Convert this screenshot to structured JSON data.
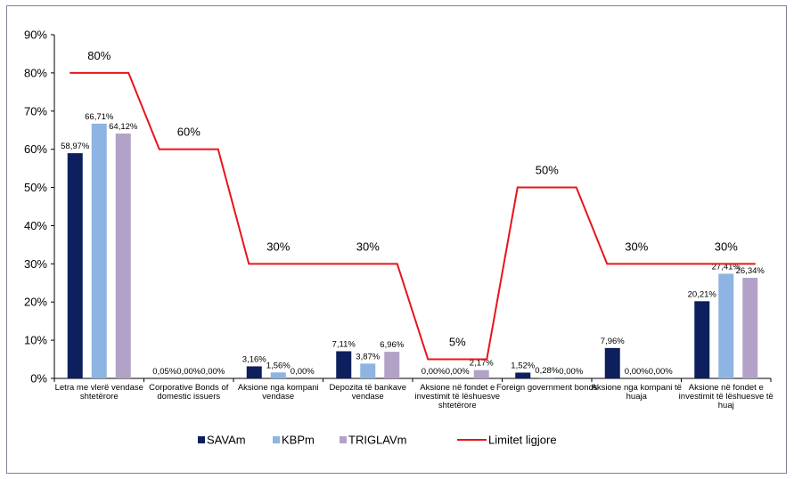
{
  "chart_data": {
    "type": "bar",
    "ylim": [
      0,
      90
    ],
    "yticks": [
      "0%",
      "10%",
      "20%",
      "30%",
      "40%",
      "50%",
      "60%",
      "70%",
      "80%",
      "90%"
    ],
    "grid": false,
    "legend_position": "bottom",
    "categories": [
      [
        "Letra me vlerë vendase",
        "shtetërore"
      ],
      [
        "Corporative Bonds of",
        "domestic issuers"
      ],
      [
        "Aksione nga kompani",
        "vendase"
      ],
      [
        "Depozita të bankave",
        "vendase"
      ],
      [
        "Aksione në fondet e",
        "investimit të lëshuesve",
        "shtetërore"
      ],
      [
        "Foreign government bonds"
      ],
      [
        "Aksione nga kompani të",
        "huaja"
      ],
      [
        "Aksione në fondet e",
        "investimit të lëshuesve të",
        "huaj"
      ]
    ],
    "series": [
      {
        "name": "SAVAm",
        "color": "#0d1f5c",
        "values": [
          58.97,
          0.05,
          3.16,
          7.11,
          0.0,
          1.52,
          7.96,
          20.21
        ],
        "labels": [
          "58,97%",
          "0,05%",
          "3,16%",
          "7,11%",
          "0,00%",
          "1,52%",
          "7,96%",
          "20,21%"
        ]
      },
      {
        "name": "KBPm",
        "color": "#8db4e2",
        "values": [
          66.71,
          0.0,
          1.56,
          3.87,
          0.0,
          0.28,
          0.0,
          27.41
        ],
        "labels": [
          "66,71%",
          "0,00%",
          "1,56%",
          "3,87%",
          "0,00%",
          "0,28%",
          "0,00%",
          "27,41%"
        ]
      },
      {
        "name": "TRIGLAVm",
        "color": "#b3a2c7",
        "values": [
          64.12,
          0.0,
          0.0,
          6.96,
          2.17,
          0.0,
          0.0,
          26.34
        ],
        "labels": [
          "64,12%",
          "0,00%",
          "0,00%",
          "6,96%",
          "2,17%",
          "0,00%",
          "0,00%",
          "26,34%"
        ]
      }
    ],
    "limit_line": {
      "name": "Limitet ligjore",
      "color": "#e8141b",
      "values": [
        80,
        60,
        30,
        30,
        5,
        50,
        30,
        30
      ],
      "labels": [
        "80%",
        "60%",
        "30%",
        "30%",
        "5%",
        "50%",
        "30%",
        "30%"
      ]
    }
  }
}
